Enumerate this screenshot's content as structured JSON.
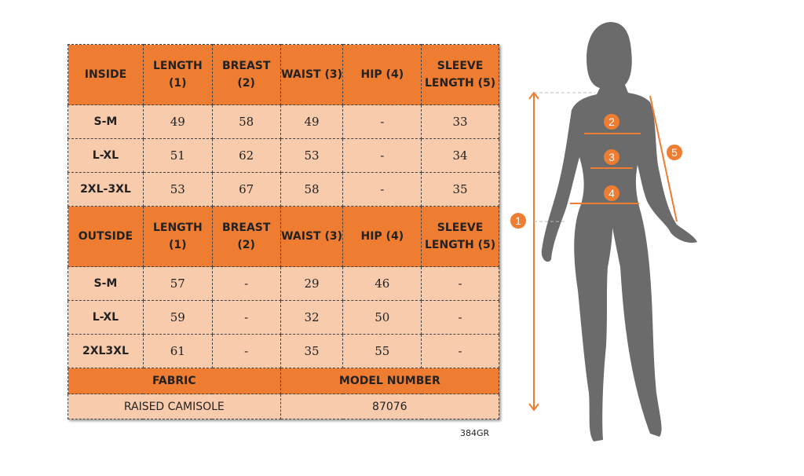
{
  "inside": {
    "headers": [
      "INSIDE",
      "LENGTH (1)",
      "BREAST (2)",
      "WAIST (3)",
      "HIP (4)",
      "SLEEVE LENGTH (5)"
    ],
    "rows": [
      [
        "S-M",
        "49",
        "58",
        "49",
        "-",
        "33"
      ],
      [
        "L-XL",
        "51",
        "62",
        "53",
        "-",
        "34"
      ],
      [
        "2XL-3XL",
        "53",
        "67",
        "58",
        "-",
        "35"
      ]
    ]
  },
  "outside": {
    "headers": [
      "OUTSIDE",
      "LENGTH (1)",
      "BREAST (2)",
      "WAIST (3)",
      "HIP (4)",
      "SLEEVE LENGTH (5)"
    ],
    "rows": [
      [
        "S-M",
        "57",
        "-",
        "29",
        "46",
        "-"
      ],
      [
        "L-XL",
        "59",
        "-",
        "32",
        "50",
        "-"
      ],
      [
        "2XL3XL",
        "61",
        "-",
        "35",
        "55",
        "-"
      ]
    ]
  },
  "footer": {
    "fabric_label": "FABRIC",
    "model_label": "MODEL NUMBER",
    "fabric": "RAISED CAMISOLE",
    "model": "87076"
  },
  "code": "384GR",
  "markers": [
    "1",
    "2",
    "3",
    "4",
    "5"
  ],
  "colors": {
    "orange": "#ee7d32",
    "peach": "#f8cbad",
    "silhouette": "#6b6b6b"
  }
}
